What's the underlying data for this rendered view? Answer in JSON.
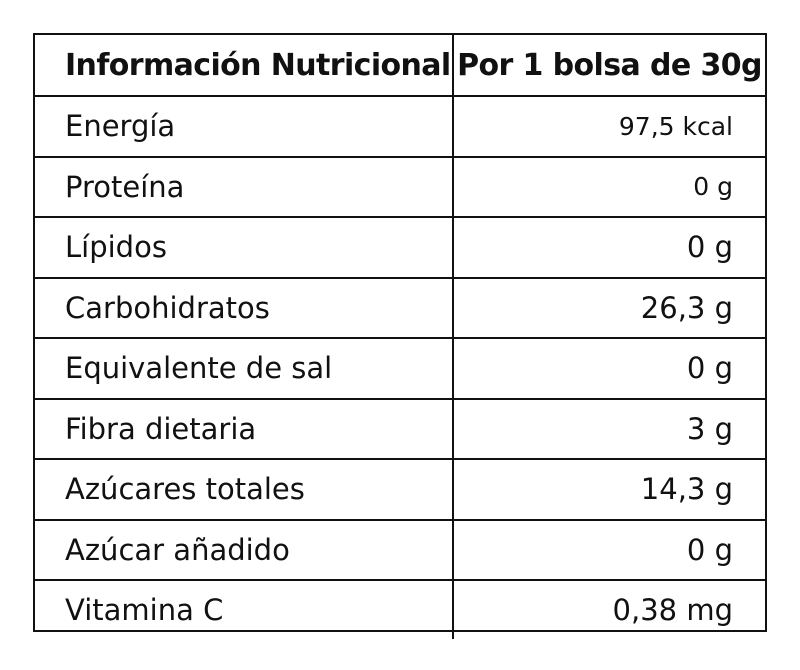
{
  "table": {
    "header": {
      "name": "Información Nutricional",
      "value": "Por 1 bolsa de 30g"
    },
    "rows": [
      {
        "name": "Energía",
        "value": "97,5 kcal"
      },
      {
        "name": "Proteína",
        "value": "0 g"
      },
      {
        "name": "Lípidos",
        "value": "0 g"
      },
      {
        "name": "Carbohidratos",
        "value": "26,3 g"
      },
      {
        "name": "Equivalente de sal",
        "value": "0 g"
      },
      {
        "name": "Fibra dietaria",
        "value": "3 g"
      },
      {
        "name": "Azúcares totales",
        "value": "14,3 g"
      },
      {
        "name": "Azúcar añadido",
        "value": "0 g"
      },
      {
        "name": "Vitamina C",
        "value": "0,38 mg"
      }
    ]
  }
}
